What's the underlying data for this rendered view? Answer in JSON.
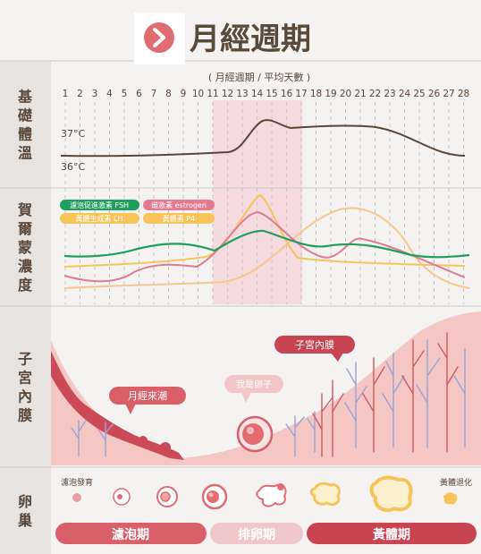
{
  "title": "月經週期",
  "axis_caption": "( 月經週期 / 平均天數 )",
  "days": [
    "1",
    "2",
    "3",
    "4",
    "5",
    "6",
    "7",
    "8",
    "9",
    "10",
    "11",
    "12",
    "13",
    "14",
    "15",
    "16",
    "17",
    "18",
    "19",
    "20",
    "21",
    "22",
    "23",
    "24",
    "25",
    "26",
    "27",
    "28"
  ],
  "rows": [
    {
      "id": "bbt",
      "label": "基礎體溫"
    },
    {
      "id": "hormone",
      "label": "賀爾蒙濃度"
    },
    {
      "id": "endometrium",
      "label": "子宮內膜"
    },
    {
      "id": "ovary",
      "label": "卵巢"
    }
  ],
  "temperature": {
    "high": "37°C",
    "low": "36°C"
  },
  "legend": [
    {
      "label": "濾泡促進激素 FSH",
      "color": "#1f9e5c"
    },
    {
      "label": "雌激素 estrogen",
      "color": "#e27a93"
    },
    {
      "label": "黃體生成素 LH",
      "color": "#f7c45a"
    },
    {
      "label": "黃體素 P4",
      "color": "#f7c45a"
    }
  ],
  "callouts": {
    "menstruation": "月經來潮",
    "ovum": "我是卵子",
    "endometrium": "子宮內膜"
  },
  "ovary_labels": {
    "follicle": "濾泡發育",
    "regress": "黃體退化"
  },
  "phases": [
    {
      "label": "濾泡期",
      "color": "#d9606a"
    },
    {
      "label": "排卵期",
      "color": "#efc7c9"
    },
    {
      "label": "黃體期",
      "color": "#c94452"
    }
  ],
  "colors": {
    "accent": "#d9606a",
    "title": "#5a4a3a",
    "row_label": "#5a4636",
    "line": "#5a4636"
  }
}
